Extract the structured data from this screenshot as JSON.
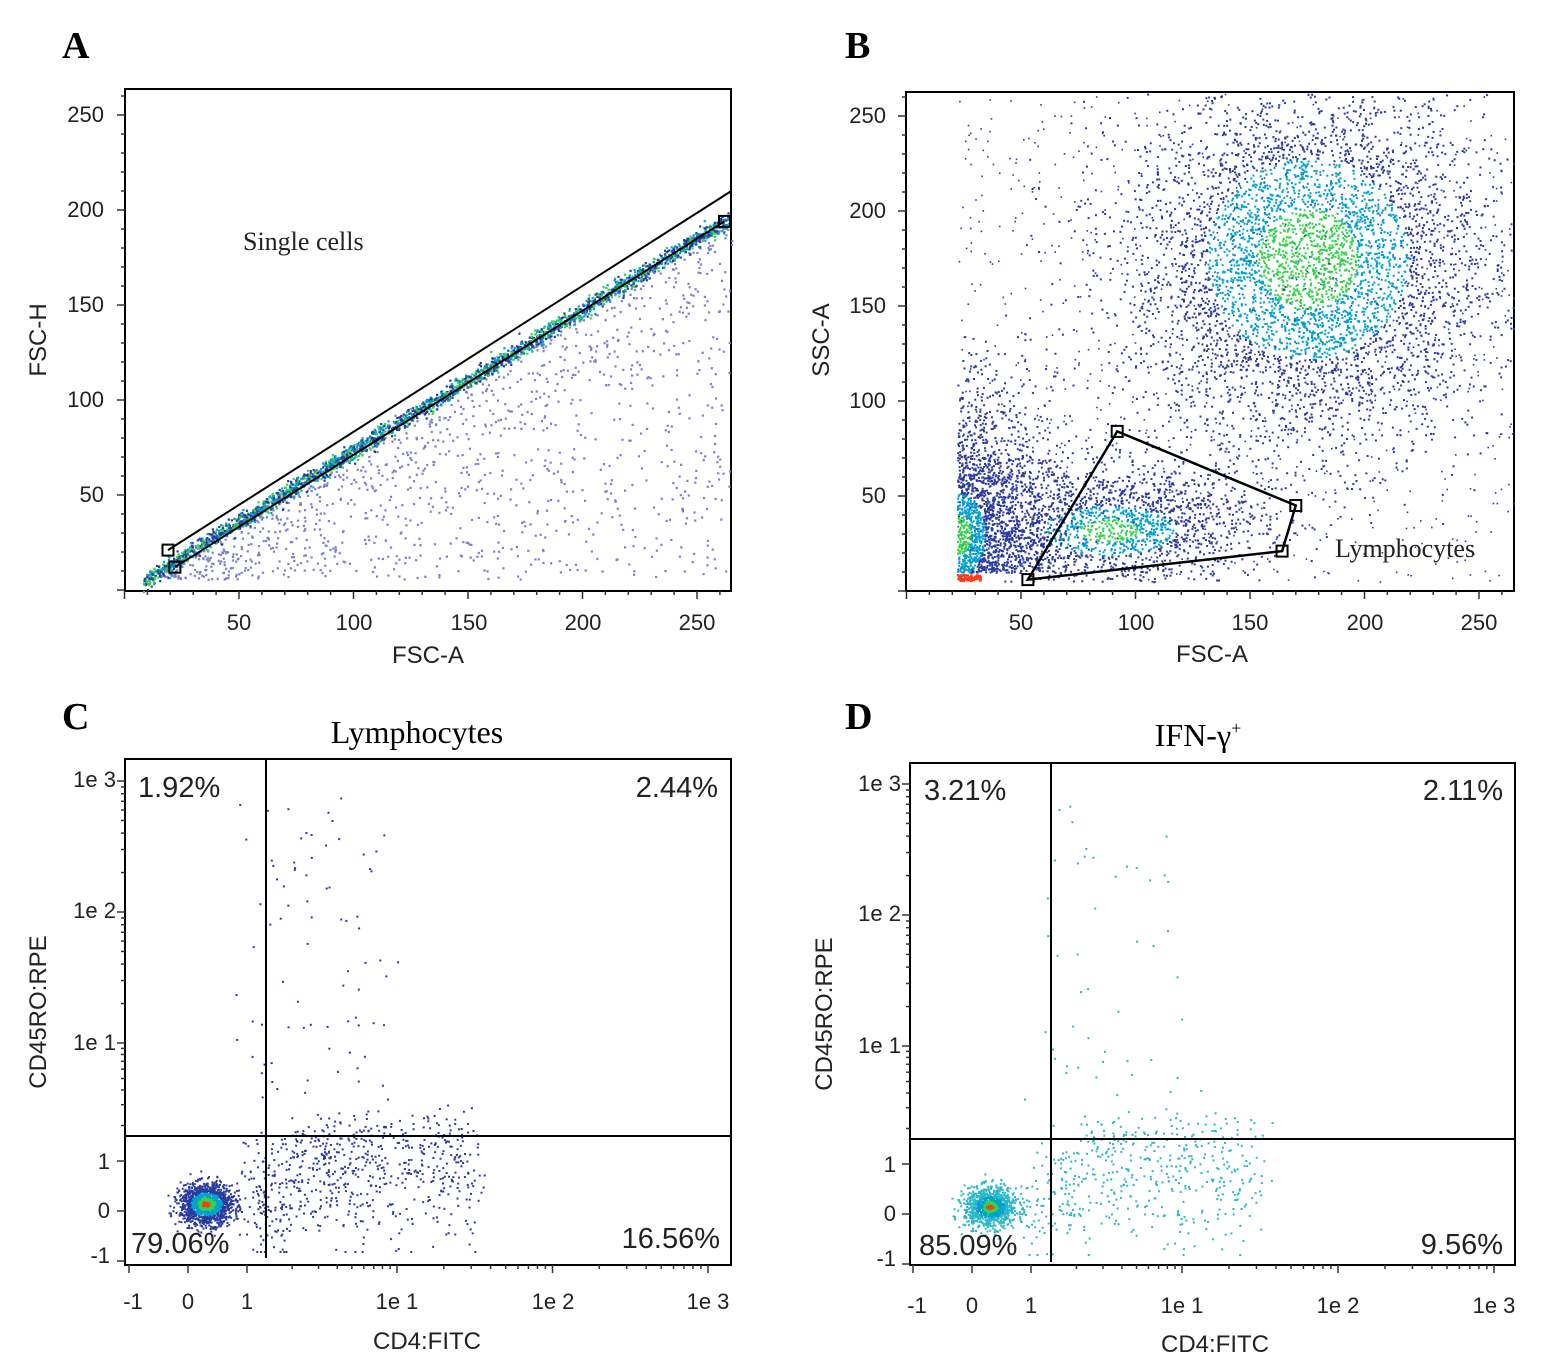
{
  "colors": {
    "density_low": "#2b3a9e",
    "density_mid": "#00a0d0",
    "density_high": "#33d24a",
    "density_peak": "#ff3b1a",
    "gate": "#000000",
    "sparse_a": "#7f7fc9",
    "sparse_d": "#2ab7c8"
  },
  "chart_data": [
    {
      "panel": "A",
      "type": "scatter",
      "title": "",
      "xlabel": "FSC-A",
      "ylabel": "FSC-H",
      "xlim": [
        0,
        265
      ],
      "ylim": [
        0,
        265
      ],
      "x_ticks": [
        "50",
        "100",
        "150",
        "200",
        "250"
      ],
      "y_ticks": [
        "50",
        "100",
        "150",
        "200",
        "250"
      ],
      "gate_label": "Single cells",
      "gate": {
        "type": "band",
        "lower": [
          [
            22,
            12
          ],
          [
            262,
            194
          ]
        ],
        "upper": [
          [
            19,
            21
          ],
          [
            265,
            210
          ]
        ],
        "handles": [
          [
            19,
            21
          ],
          [
            22,
            12
          ],
          [
            262,
            194
          ]
        ]
      }
    },
    {
      "panel": "B",
      "type": "scatter",
      "title": "",
      "xlabel": "FSC-A",
      "ylabel": "SSC-A",
      "xlim": [
        0,
        265
      ],
      "ylim": [
        0,
        265
      ],
      "x_ticks": [
        "50",
        "100",
        "150",
        "200",
        "250"
      ],
      "y_ticks": [
        "50",
        "100",
        "150",
        "200",
        "250"
      ],
      "gate_label": "Lymphocytes",
      "gate": {
        "type": "polygon",
        "points": [
          [
            53,
            6
          ],
          [
            92,
            84
          ],
          [
            170,
            45
          ],
          [
            164,
            21
          ]
        ]
      }
    },
    {
      "panel": "C",
      "type": "scatter",
      "title": "Lymphocytes",
      "xlabel": "CD4:FITC",
      "ylabel": "CD45RO:RPE",
      "x_ticks": [
        "-1",
        "0",
        "1",
        "1e 1",
        "1e 2",
        "1e 3"
      ],
      "y_ticks": [
        "-1",
        "0",
        "1",
        "1e 1",
        "1e 2",
        "1e 3"
      ],
      "quadrants": {
        "upper_left": "1.92%",
        "upper_right": "2.44%",
        "lower_left": "79.06%",
        "lower_right": "16.56%"
      },
      "quadrant_split": {
        "x": 1.35,
        "y": 1.35
      }
    },
    {
      "panel": "D",
      "type": "scatter",
      "title": "IFN-γ",
      "title_sup": "+",
      "xlabel": "CD4:FITC",
      "ylabel": "CD45RO:RPE",
      "x_ticks": [
        "-1",
        "0",
        "1",
        "1e 1",
        "1e 2",
        "1e 3"
      ],
      "y_ticks": [
        "-1",
        "0",
        "1",
        "1e 1",
        "1e 2",
        "1e 3"
      ],
      "quadrants": {
        "upper_left": "3.21%",
        "upper_right": "2.11%",
        "lower_left": "85.09%",
        "lower_right": "9.56%"
      },
      "quadrant_split": {
        "x": 1.35,
        "y": 1.35
      }
    }
  ]
}
